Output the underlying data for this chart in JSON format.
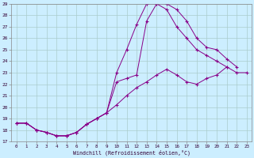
{
  "xlabel": "Windchill (Refroidissement éolien,°C)",
  "background_color": "#cceeff",
  "line_color": "#880088",
  "grid_color": "#aacccc",
  "xlim": [
    -0.5,
    23.5
  ],
  "ylim": [
    17,
    29
  ],
  "yticks": [
    17,
    18,
    19,
    20,
    21,
    22,
    23,
    24,
    25,
    26,
    27,
    28,
    29
  ],
  "xticks": [
    0,
    1,
    2,
    3,
    4,
    5,
    6,
    7,
    8,
    9,
    10,
    11,
    12,
    13,
    14,
    15,
    16,
    17,
    18,
    19,
    20,
    21,
    22,
    23
  ],
  "line1_x": [
    0,
    1,
    2,
    3,
    4,
    5,
    6,
    7,
    8,
    9,
    10,
    11,
    12,
    13,
    14,
    15,
    16,
    17,
    18,
    19,
    20,
    21,
    22,
    23
  ],
  "line1_y": [
    18.6,
    18.6,
    18.0,
    17.8,
    17.5,
    17.5,
    17.8,
    18.5,
    19.0,
    19.5,
    20.2,
    21.0,
    21.7,
    22.2,
    22.8,
    23.3,
    22.8,
    22.2,
    22.0,
    22.5,
    22.8,
    23.5,
    23.0,
    23.0
  ],
  "line2_x": [
    0,
    1,
    2,
    3,
    4,
    5,
    6,
    7,
    8,
    9,
    10,
    11,
    12,
    13,
    14,
    15,
    16,
    17,
    18,
    19,
    20,
    21,
    22,
    23
  ],
  "line2_y": [
    18.6,
    18.6,
    18.0,
    17.8,
    17.5,
    17.5,
    17.8,
    18.5,
    19.0,
    19.5,
    23.0,
    25.0,
    27.2,
    29.0,
    29.0,
    28.5,
    27.0,
    26.0,
    25.0,
    24.5,
    24.0,
    23.5,
    null,
    null
  ],
  "line3_x": [
    0,
    1,
    2,
    3,
    4,
    5,
    6,
    7,
    8,
    9,
    10,
    11,
    12,
    13,
    14,
    15,
    16,
    17,
    18,
    19,
    20,
    21,
    22,
    23
  ],
  "line3_y": [
    18.6,
    18.6,
    18.0,
    17.8,
    17.5,
    17.5,
    17.8,
    18.5,
    19.0,
    19.5,
    22.2,
    22.5,
    22.8,
    27.5,
    29.0,
    29.0,
    28.5,
    27.5,
    26.0,
    25.2,
    25.0,
    24.2,
    23.5,
    null
  ]
}
